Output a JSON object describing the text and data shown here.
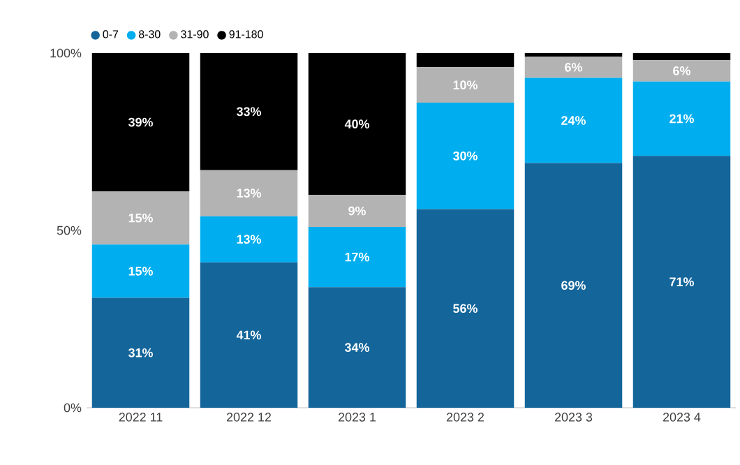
{
  "chart_data": {
    "type": "bar",
    "stacked": true,
    "categories": [
      "2022 11",
      "2022 12",
      "2023 1",
      "2023 2",
      "2023 3",
      "2023 4"
    ],
    "series": [
      {
        "name": "0-7",
        "color": "#13659a",
        "values": [
          31,
          41,
          34,
          56,
          69,
          71
        ],
        "value_labels": [
          "31%",
          "41%",
          "34%",
          "56%",
          "69%",
          "71%"
        ]
      },
      {
        "name": "8-30",
        "color": "#00aeef",
        "values": [
          15,
          13,
          17,
          30,
          24,
          21
        ],
        "value_labels": [
          "15%",
          "13%",
          "17%",
          "30%",
          "24%",
          "21%"
        ]
      },
      {
        "name": "31-90",
        "color": "#b3b3b3",
        "values": [
          15,
          13,
          9,
          10,
          6,
          6
        ],
        "value_labels": [
          "15%",
          "13%",
          "9%",
          "10%",
          "6%",
          "6%"
        ]
      },
      {
        "name": "91-180",
        "color": "#000000",
        "values": [
          39,
          33,
          40,
          4,
          1,
          2
        ],
        "value_labels": [
          "39%",
          "33%",
          "40%",
          null,
          null,
          null
        ]
      }
    ],
    "ylim": [
      0,
      100
    ],
    "yticks": [
      {
        "value": 0,
        "label": "0%"
      },
      {
        "value": 50,
        "label": "50%"
      },
      {
        "value": 100,
        "label": "100%"
      }
    ],
    "legend": "top left",
    "grid": false
  }
}
